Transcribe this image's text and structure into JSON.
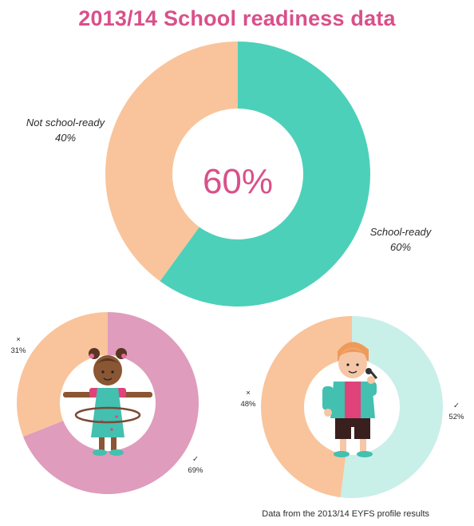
{
  "title": "2013/14 School readiness data",
  "footer": "Data from the 2013/14 EYFS profile results",
  "colors": {
    "title": "#d9508a",
    "not_ready_peach": "#f9c49b",
    "ready_teal": "#4dd0b9",
    "girls_pink": "#df9cbc",
    "boys_light_teal": "#c9efe9",
    "center_value": "#d9508a"
  },
  "chart_data": [
    {
      "type": "pie",
      "title": "2013/14 School readiness data",
      "center_label": "60%",
      "slices": [
        {
          "label": "School-ready",
          "value": 60,
          "value_label": "60%",
          "color": "#4dd0b9"
        },
        {
          "label": "Not school-ready",
          "value": 40,
          "value_label": "40%",
          "color": "#f9c49b"
        }
      ]
    },
    {
      "type": "pie",
      "icon": "girl-hula-hoop-illustration",
      "slices": [
        {
          "label": "✓",
          "value": 69,
          "value_label": "69%",
          "color": "#df9cbc"
        },
        {
          "label": "×",
          "value": 31,
          "value_label": "31%",
          "color": "#f9c49b"
        }
      ]
    },
    {
      "type": "pie",
      "icon": "boy-microphone-illustration",
      "slices": [
        {
          "label": "✓",
          "value": 52,
          "value_label": "52%",
          "color": "#c9efe9"
        },
        {
          "label": "×",
          "value": 48,
          "value_label": "48%",
          "color": "#f9c49b"
        }
      ]
    }
  ]
}
